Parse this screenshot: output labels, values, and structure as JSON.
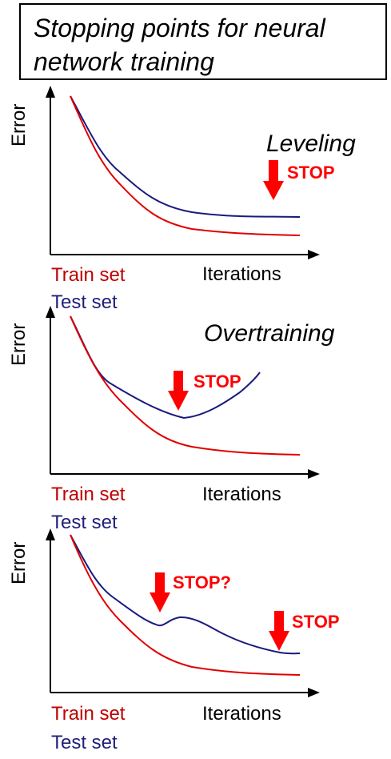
{
  "title": "Stopping points for neural network training",
  "colors": {
    "train": "#e00000",
    "test": "#1a1a7e",
    "stop": "#ff0000",
    "axis": "#000000"
  },
  "panels": [
    {
      "ylabel": "Error",
      "xlabel": "Iterations",
      "legend_train": "Train set",
      "legend_test": "Test set",
      "annotation": "Leveling",
      "stops": [
        "STOP"
      ]
    },
    {
      "ylabel": "Error",
      "xlabel": "Iterations",
      "legend_train": "Train set",
      "legend_test": "Test set",
      "annotation": "Overtraining",
      "stops": [
        "STOP"
      ]
    },
    {
      "ylabel": "Error",
      "xlabel": "Iterations",
      "legend_train": "Train set",
      "legend_test": "Test set",
      "annotation": "",
      "stops": [
        "STOP?",
        "STOP"
      ]
    }
  ]
}
